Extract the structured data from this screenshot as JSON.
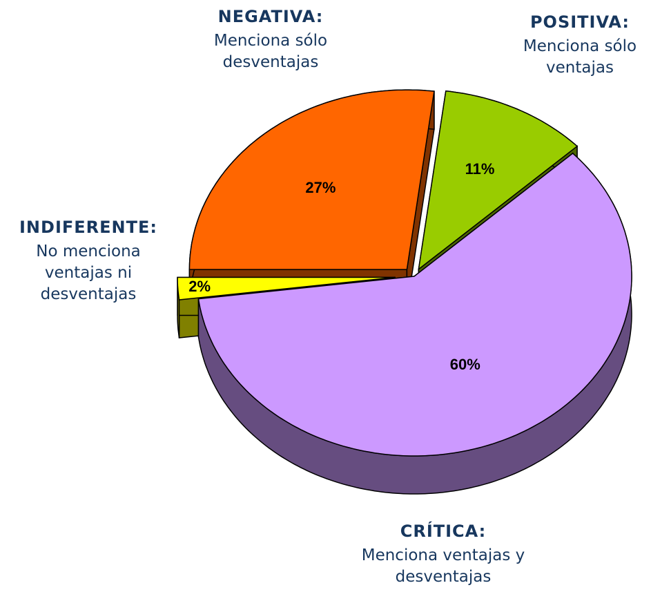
{
  "chart_data": {
    "type": "pie",
    "categories": [
      "POSITIVA:",
      "CRÍTICA:",
      "INDIFERENTE:",
      "NEGATIVA:"
    ],
    "descriptions": [
      "Menciona sólo ventajas",
      "Menciona ventajas y desventajas",
      "No menciona ventajas ni desventajas",
      "Menciona sólo desventajas"
    ],
    "values": [
      11,
      60,
      2,
      27
    ],
    "value_labels": [
      "11%",
      "60%",
      "2%",
      "27%"
    ],
    "colors": [
      "#99cc00",
      "#cc99ff",
      "#ffff00",
      "#ff6600"
    ]
  }
}
